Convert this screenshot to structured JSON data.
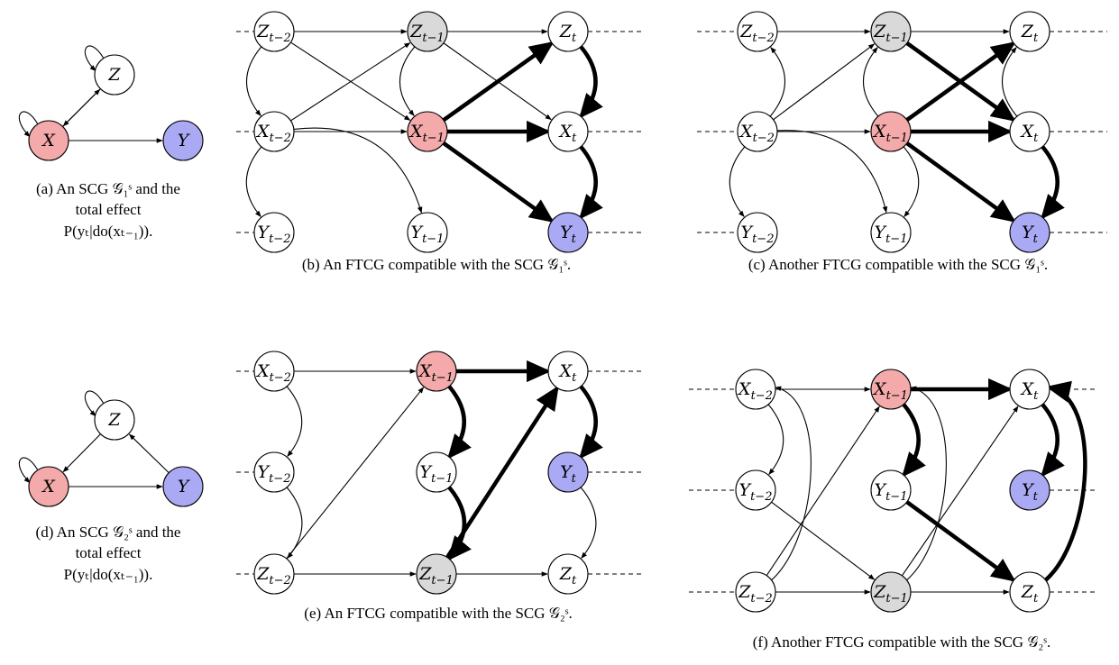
{
  "colors": {
    "intervention": "#f4aaaa",
    "outcome": "#aaaaf4",
    "confounder": "#d9d9d9",
    "plain": "#ffffff",
    "stroke": "#000000"
  },
  "panels": [
    {
      "id": "a",
      "kind": "scg",
      "caption": [
        "(a) An SCG 𝒢₁ˢ and the",
        "total effect",
        "P(yₜ|do(xₜ₋₁))."
      ],
      "nodes": [
        {
          "id": "Z",
          "label": "Z",
          "fill": "plain"
        },
        {
          "id": "X",
          "label": "X",
          "fill": "intervention"
        },
        {
          "id": "Y",
          "label": "Y",
          "fill": "outcome"
        }
      ],
      "edges": [
        {
          "from": "X",
          "to": "Z",
          "style": "thin"
        },
        {
          "from": "Z",
          "to": "X",
          "style": "thin"
        },
        {
          "from": "X",
          "to": "Y",
          "style": "thin"
        },
        {
          "from": "Z",
          "to": "Z",
          "style": "selfloop"
        },
        {
          "from": "X",
          "to": "X",
          "style": "selfloop"
        }
      ]
    },
    {
      "id": "b",
      "kind": "ftcg",
      "caption": [
        "(b) An FTCG compatible with the SCG 𝒢₁ˢ."
      ],
      "nodes": [
        {
          "id": "Z2",
          "label": "Z",
          "sub": "t−2",
          "fill": "plain"
        },
        {
          "id": "Z1",
          "label": "Z",
          "sub": "t−1",
          "fill": "confounder"
        },
        {
          "id": "Z0",
          "label": "Z",
          "sub": "t",
          "fill": "plain"
        },
        {
          "id": "X2",
          "label": "X",
          "sub": "t−2",
          "fill": "plain"
        },
        {
          "id": "X1",
          "label": "X",
          "sub": "t−1",
          "fill": "intervention"
        },
        {
          "id": "X0",
          "label": "X",
          "sub": "t",
          "fill": "plain"
        },
        {
          "id": "Y2",
          "label": "Y",
          "sub": "t−2",
          "fill": "plain"
        },
        {
          "id": "Y1",
          "label": "Y",
          "sub": "t−1",
          "fill": "plain"
        },
        {
          "id": "Y0",
          "label": "Y",
          "sub": "t",
          "fill": "outcome"
        }
      ],
      "edges": [
        {
          "from": "Z2",
          "to": "Z1",
          "style": "thin"
        },
        {
          "from": "Z1",
          "to": "Z0",
          "style": "thin"
        },
        {
          "from": "Z2",
          "to": "X1",
          "style": "thin"
        },
        {
          "from": "X2",
          "to": "Z1",
          "style": "thin"
        },
        {
          "from": "Z1",
          "to": "X0",
          "style": "thin"
        },
        {
          "from": "Z2",
          "to": "X2",
          "style": "thin",
          "bend": -40
        },
        {
          "from": "Z1",
          "to": "X1",
          "style": "thin",
          "bend": -40
        },
        {
          "from": "X2",
          "to": "X1",
          "style": "thin"
        },
        {
          "from": "X2",
          "to": "Y2",
          "style": "thin",
          "bend": -40
        },
        {
          "from": "X2",
          "to": "Y1",
          "style": "thin",
          "bend": 40
        },
        {
          "from": "X1",
          "to": "Z0",
          "style": "thick"
        },
        {
          "from": "X1",
          "to": "X0",
          "style": "thick"
        },
        {
          "from": "X1",
          "to": "Y0",
          "style": "thick"
        },
        {
          "from": "Z0",
          "to": "X0",
          "style": "thick",
          "bend": 40
        },
        {
          "from": "X0",
          "to": "Y0",
          "style": "thick",
          "bend": 40
        }
      ]
    },
    {
      "id": "c",
      "kind": "ftcg",
      "caption": [
        "(c) Another FTCG compatible with the SCG 𝒢₁ˢ."
      ],
      "nodes": [
        {
          "id": "Z2",
          "label": "Z",
          "sub": "t−2",
          "fill": "plain"
        },
        {
          "id": "Z1",
          "label": "Z",
          "sub": "t−1",
          "fill": "confounder"
        },
        {
          "id": "Z0",
          "label": "Z",
          "sub": "t",
          "fill": "plain"
        },
        {
          "id": "X2",
          "label": "X",
          "sub": "t−2",
          "fill": "plain"
        },
        {
          "id": "X1",
          "label": "X",
          "sub": "t−1",
          "fill": "intervention"
        },
        {
          "id": "X0",
          "label": "X",
          "sub": "t",
          "fill": "plain"
        },
        {
          "id": "Y2",
          "label": "Y",
          "sub": "t−2",
          "fill": "plain"
        },
        {
          "id": "Y1",
          "label": "Y",
          "sub": "t−1",
          "fill": "plain"
        },
        {
          "id": "Y0",
          "label": "Y",
          "sub": "t",
          "fill": "outcome"
        }
      ],
      "edges": [
        {
          "from": "Z2",
          "to": "Z1",
          "style": "thin"
        },
        {
          "from": "Z1",
          "to": "Z0",
          "style": "thin"
        },
        {
          "from": "X2",
          "to": "Z2",
          "style": "thin",
          "bend": -40
        },
        {
          "from": "X2",
          "to": "Z1",
          "style": "thin"
        },
        {
          "from": "X1",
          "to": "Z1",
          "style": "thin",
          "bend": 40
        },
        {
          "from": "X1",
          "to": "Y1",
          "style": "thin",
          "bend": 40
        },
        {
          "from": "X2",
          "to": "X1",
          "style": "thin"
        },
        {
          "from": "X2",
          "to": "Y2",
          "style": "thin",
          "bend": -40
        },
        {
          "from": "X2",
          "to": "Y1",
          "style": "thin",
          "bend": 40
        },
        {
          "from": "X0",
          "to": "Z0",
          "style": "thin",
          "bend": 40
        },
        {
          "from": "X1",
          "to": "Z0",
          "style": "thick"
        },
        {
          "from": "Z1",
          "to": "X0",
          "style": "thick"
        },
        {
          "from": "X1",
          "to": "X0",
          "style": "thick"
        },
        {
          "from": "X1",
          "to": "Y0",
          "style": "thick"
        },
        {
          "from": "X0",
          "to": "Y0",
          "style": "thick",
          "bend": 40
        }
      ]
    },
    {
      "id": "d",
      "kind": "scg",
      "caption": [
        "(d) An SCG 𝒢₂ˢ and the",
        "total effect",
        "P(yₜ|do(xₜ₋₁))."
      ],
      "nodes": [
        {
          "id": "Z",
          "label": "Z",
          "fill": "plain"
        },
        {
          "id": "X",
          "label": "X",
          "fill": "intervention"
        },
        {
          "id": "Y",
          "label": "Y",
          "fill": "outcome"
        }
      ],
      "edges": [
        {
          "from": "Z",
          "to": "X",
          "style": "thin"
        },
        {
          "from": "Y",
          "to": "Z",
          "style": "thin"
        },
        {
          "from": "X",
          "to": "Y",
          "style": "thin"
        },
        {
          "from": "Z",
          "to": "Z",
          "style": "selfloop"
        },
        {
          "from": "X",
          "to": "X",
          "style": "selfloop"
        }
      ]
    },
    {
      "id": "e",
      "kind": "ftcg",
      "caption": [
        "(e) An FTCG compatible with the SCG 𝒢₂ˢ."
      ],
      "nodes": [
        {
          "id": "X2",
          "label": "X",
          "sub": "t−2",
          "fill": "plain"
        },
        {
          "id": "X1",
          "label": "X",
          "sub": "t−1",
          "fill": "intervention"
        },
        {
          "id": "X0",
          "label": "X",
          "sub": "t",
          "fill": "plain"
        },
        {
          "id": "Y2",
          "label": "Y",
          "sub": "t−2",
          "fill": "plain"
        },
        {
          "id": "Y1",
          "label": "Y",
          "sub": "t−1",
          "fill": "plain"
        },
        {
          "id": "Y0",
          "label": "Y",
          "sub": "t",
          "fill": "outcome"
        },
        {
          "id": "Z2",
          "label": "Z",
          "sub": "t−2",
          "fill": "plain"
        },
        {
          "id": "Z1",
          "label": "Z",
          "sub": "t−1",
          "fill": "confounder"
        },
        {
          "id": "Z0",
          "label": "Z",
          "sub": "t",
          "fill": "plain"
        }
      ],
      "edges": [
        {
          "from": "X2",
          "to": "X1",
          "style": "thin"
        },
        {
          "from": "X2",
          "to": "Y2",
          "style": "thin",
          "bend": 40
        },
        {
          "from": "Y2",
          "to": "Z2",
          "style": "thin",
          "bend": 40
        },
        {
          "from": "Z2",
          "to": "X1",
          "style": "thin"
        },
        {
          "from": "Z2",
          "to": "Z1",
          "style": "thin"
        },
        {
          "from": "Z1",
          "to": "Z0",
          "style": "thin"
        },
        {
          "from": "Y0",
          "to": "Z0",
          "style": "thin",
          "bend": 40
        },
        {
          "from": "X1",
          "to": "X0",
          "style": "thick"
        },
        {
          "from": "X1",
          "to": "Y1",
          "style": "thick",
          "bend": 40
        },
        {
          "from": "Y1",
          "to": "Z1",
          "style": "thick",
          "bend": 40
        },
        {
          "from": "Z1",
          "to": "X0",
          "style": "thick"
        },
        {
          "from": "X0",
          "to": "Y0",
          "style": "thick",
          "bend": 40
        }
      ]
    },
    {
      "id": "f",
      "kind": "ftcg",
      "caption": [
        "(f) Another FTCG compatible with the SCG 𝒢₂ˢ."
      ],
      "nodes": [
        {
          "id": "X2",
          "label": "X",
          "sub": "t−2",
          "fill": "plain"
        },
        {
          "id": "X1",
          "label": "X",
          "sub": "t−1",
          "fill": "intervention"
        },
        {
          "id": "X0",
          "label": "X",
          "sub": "t",
          "fill": "plain"
        },
        {
          "id": "Y2",
          "label": "Y",
          "sub": "t−2",
          "fill": "plain"
        },
        {
          "id": "Y1",
          "label": "Y",
          "sub": "t−1",
          "fill": "plain"
        },
        {
          "id": "Y0",
          "label": "Y",
          "sub": "t",
          "fill": "outcome"
        },
        {
          "id": "Z2",
          "label": "Z",
          "sub": "t−2",
          "fill": "plain"
        },
        {
          "id": "Z1",
          "label": "Z",
          "sub": "t−1",
          "fill": "confounder"
        },
        {
          "id": "Z0",
          "label": "Z",
          "sub": "t",
          "fill": "plain"
        }
      ],
      "edges": [
        {
          "from": "X2",
          "to": "X1",
          "style": "thin"
        },
        {
          "from": "X2",
          "to": "Y2",
          "style": "thin",
          "bend": 40
        },
        {
          "from": "Y2",
          "to": "Z1",
          "style": "thin"
        },
        {
          "from": "Z2",
          "to": "X1",
          "style": "thin"
        },
        {
          "from": "Z2",
          "to": "Z1",
          "style": "thin"
        },
        {
          "from": "Z1",
          "to": "Z0",
          "style": "thin"
        },
        {
          "from": "Z1",
          "to": "X0",
          "style": "thin"
        },
        {
          "from": "Z2",
          "to": "X2",
          "style": "thin",
          "arc": "long-right"
        },
        {
          "from": "Z1",
          "to": "X1",
          "style": "thin",
          "arc": "long-right"
        },
        {
          "from": "X1",
          "to": "X0",
          "style": "thick"
        },
        {
          "from": "X1",
          "to": "Y1",
          "style": "thick",
          "bend": 40
        },
        {
          "from": "Y1",
          "to": "Z0",
          "style": "thick"
        },
        {
          "from": "X0",
          "to": "Y0",
          "style": "thick",
          "bend": 40
        },
        {
          "from": "Z0",
          "to": "X0",
          "style": "thick",
          "arc": "long-right"
        }
      ]
    }
  ]
}
